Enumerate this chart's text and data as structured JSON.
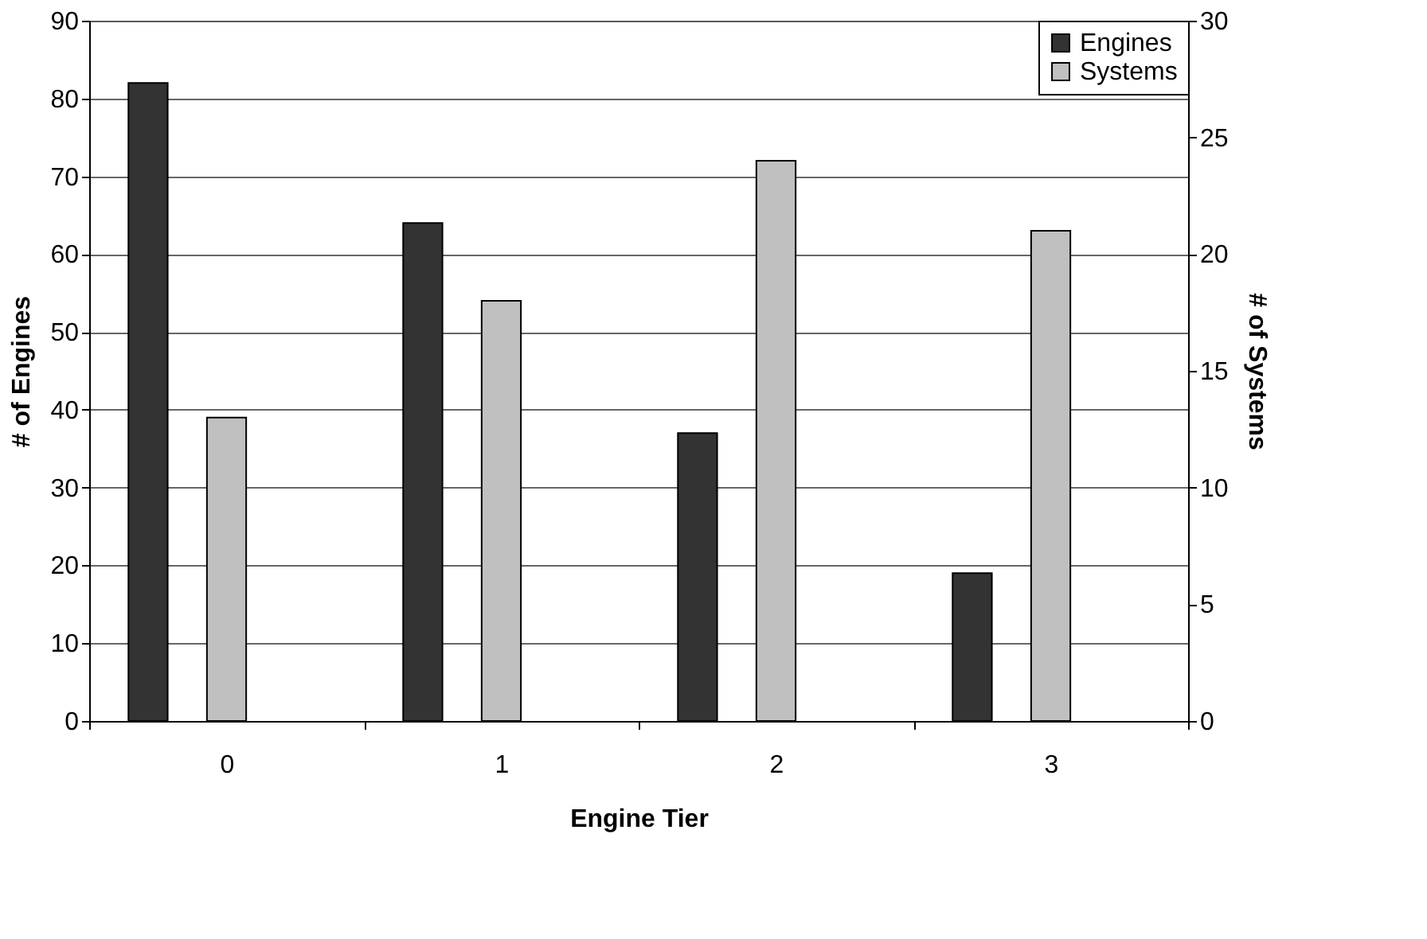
{
  "chart_data": {
    "type": "bar",
    "xlabel": "Engine Tier",
    "ylabel": "# of Engines",
    "y2label": "# of Systems",
    "categories": [
      "0",
      "1",
      "2",
      "3"
    ],
    "series": [
      {
        "name": "Engines",
        "color": "#333333",
        "values": [
          82,
          64,
          37,
          19
        ]
      },
      {
        "name": "Systems",
        "color": "#c0c0c0",
        "values": [
          13,
          18,
          24,
          21
        ],
        "axis": "y2"
      }
    ],
    "ylim": [
      0,
      90
    ],
    "yticks": [
      0,
      10,
      20,
      30,
      40,
      50,
      60,
      70,
      80,
      90
    ],
    "y2lim": [
      0,
      30
    ],
    "y2ticks": [
      0,
      5,
      10,
      15,
      20,
      25,
      30
    ],
    "grid": "y",
    "legend": "top right"
  }
}
